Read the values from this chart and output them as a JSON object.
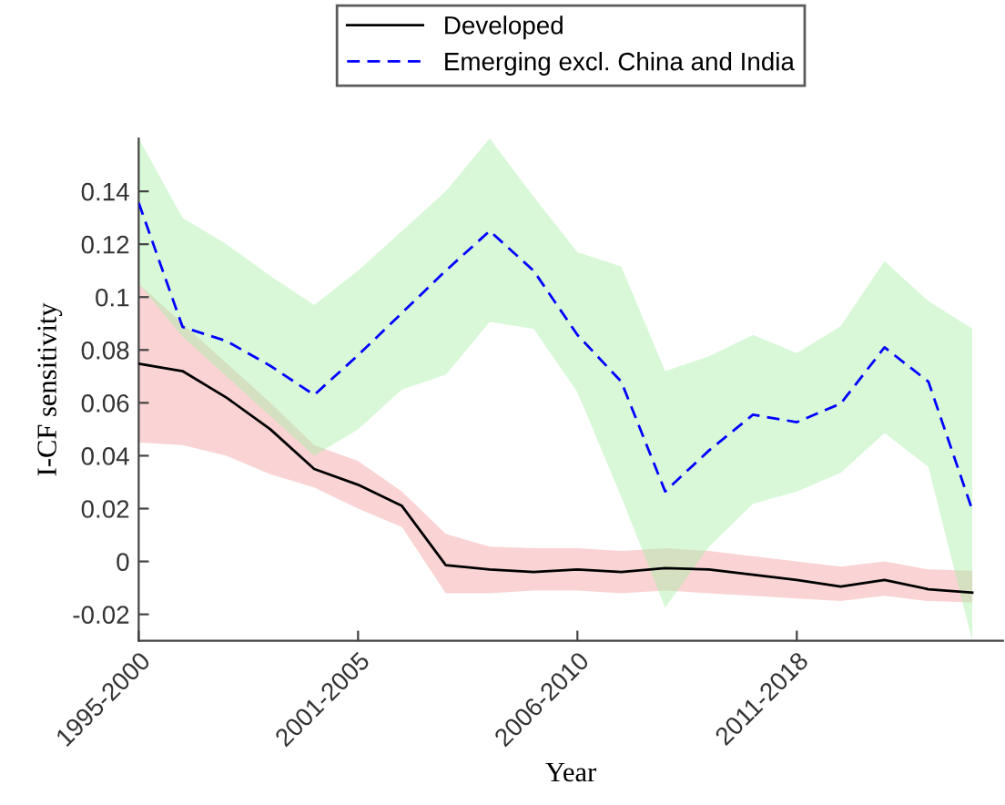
{
  "chart_data": {
    "type": "line",
    "xlabel": "Year",
    "ylabel": "I-CF sensitivity",
    "categories": [
      "1995-2000",
      null,
      null,
      null,
      null,
      "2001-2005",
      null,
      null,
      null,
      null,
      "2006-2010",
      null,
      null,
      null,
      null,
      "2011-2018",
      null,
      null,
      null,
      null
    ],
    "ylim": [
      -0.03,
      0.16
    ],
    "yticks": [
      {
        "value": -0.02,
        "label": "-0.02"
      },
      0,
      {
        "value": 0.02,
        "label": "0.02"
      },
      {
        "value": 0.04,
        "label": "0.04"
      },
      {
        "value": 0.06,
        "label": "0.06"
      },
      {
        "value": 0.08,
        "label": "0.08"
      },
      {
        "value": 0.1,
        "label": "0.1"
      },
      {
        "value": 0.12,
        "label": "0.12"
      },
      {
        "value": 0.14,
        "label": "0.14"
      }
    ],
    "grid": false,
    "legend": "top",
    "marker": "none",
    "series": [
      {
        "name": "Developed",
        "color": "#000000",
        "line_style": "solid",
        "values": [
          0.0748,
          0.072,
          0.062,
          0.05,
          0.035,
          0.029,
          0.021,
          -0.0014,
          -0.003,
          -0.004,
          -0.003,
          -0.004,
          -0.0025,
          -0.003,
          -0.005,
          -0.007,
          -0.0095,
          -0.007,
          -0.0105,
          -0.0118
        ],
        "upper": [
          0.105,
          0.09,
          0.075,
          0.06,
          0.044,
          0.038,
          0.0265,
          0.0104,
          0.0056,
          0.005,
          0.005,
          0.004,
          0.005,
          0.004,
          0.002,
          0.0,
          -0.002,
          0.0,
          -0.003,
          -0.0035
        ],
        "lower": [
          0.045,
          0.044,
          0.04,
          0.033,
          0.028,
          0.02,
          0.013,
          -0.012,
          -0.012,
          -0.011,
          -0.011,
          -0.012,
          -0.011,
          -0.012,
          -0.013,
          -0.014,
          -0.015,
          -0.013,
          -0.015,
          -0.0155
        ]
      },
      {
        "name": "Emerging excl. China and India",
        "color": "#0000ff",
        "line_style": "dashed",
        "values": [
          0.1357,
          0.0887,
          0.0834,
          0.074,
          0.063,
          0.078,
          0.094,
          0.11,
          0.125,
          0.11,
          0.0857,
          0.068,
          0.0265,
          0.042,
          0.0555,
          0.0527,
          0.0597,
          0.081,
          0.068,
          0.0195
        ],
        "upper": [
          0.16,
          0.13,
          0.12,
          0.108,
          0.097,
          0.11,
          0.125,
          0.14,
          0.16,
          0.138,
          0.117,
          0.1115,
          0.072,
          0.0776,
          0.0857,
          0.0788,
          0.089,
          0.1136,
          0.0985,
          0.088
        ],
        "lower": [
          0.105,
          0.085,
          0.07,
          0.055,
          0.04,
          0.05,
          0.065,
          0.0706,
          0.0906,
          0.088,
          0.064,
          0.0244,
          -0.0175,
          0.0056,
          0.0218,
          0.0265,
          0.0335,
          0.0486,
          0.0358,
          -0.03
        ]
      }
    ]
  }
}
